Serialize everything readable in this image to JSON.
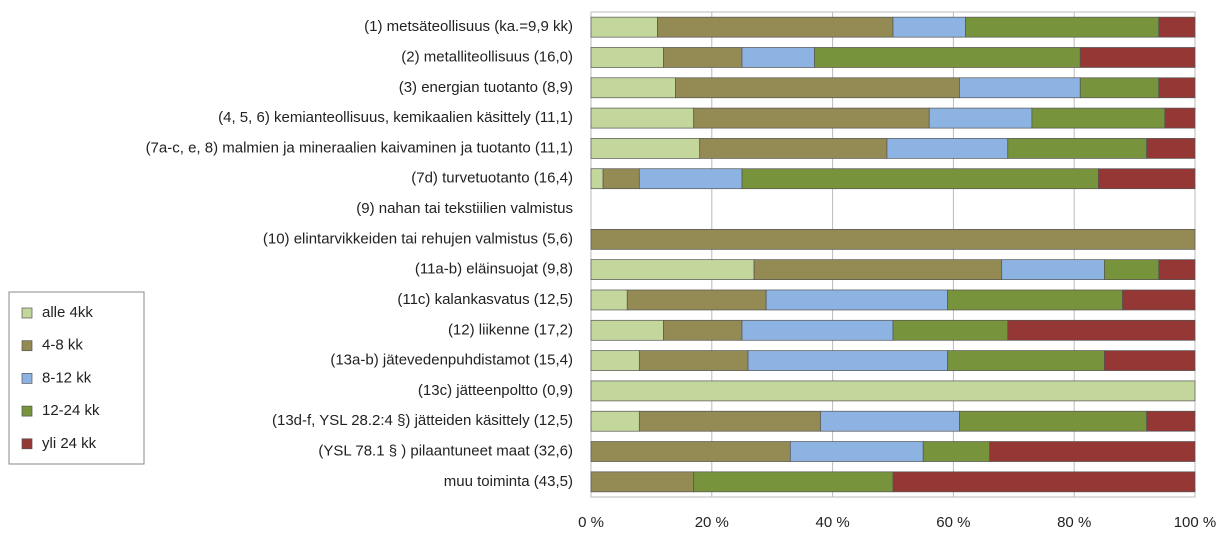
{
  "chart_data": {
    "type": "stacked_bar_horizontal",
    "categories": [
      "(1) metsäteollisuus (ka.=9,9 kk)",
      "(2) metalliteollisuus (16,0)",
      "(3) energian tuotanto (8,9)",
      "(4, 5, 6) kemianteollisuus, kemikaalien käsittely (11,1)",
      "(7a-c, e, 8) malmien ja mineraalien kaivaminen ja tuotanto (11,1)",
      "(7d) turvetuotanto (16,4)",
      "(9) nahan tai tekstiilien valmistus",
      "(10) elintarvikkeiden tai rehujen valmistus (5,6)",
      "(11a-b) eläinsuojat (9,8)",
      "(11c) kalankasvatus (12,5)",
      "(12) liikenne (17,2)",
      "(13a-b) jätevedenpuhdistamot (15,4)",
      "(13c) jätteenpoltto (0,9)",
      "(13d-f, YSL 28.2:4 §) jätteiden käsittely (12,5)",
      "(YSL 78.1 § ) pilaantuneet maat (32,6)",
      "muu toiminta (43,5)"
    ],
    "series": [
      {
        "name": "alle 4kk",
        "color": "#c3d69b",
        "values": [
          11,
          12,
          14,
          17,
          18,
          2,
          0,
          0,
          27,
          6,
          12,
          8,
          100,
          8,
          0,
          0
        ]
      },
      {
        "name": "4-8 kk",
        "color": "#948a54",
        "values": [
          39,
          13,
          47,
          39,
          31,
          6,
          0,
          100,
          41,
          23,
          13,
          18,
          0,
          30,
          33,
          17
        ]
      },
      {
        "name": "8-12 kk",
        "color": "#8db3e2",
        "values": [
          12,
          12,
          20,
          17,
          20,
          17,
          0,
          0,
          17,
          30,
          25,
          33,
          0,
          23,
          22,
          0
        ]
      },
      {
        "name": "12-24 kk",
        "color": "#77933c",
        "values": [
          32,
          44,
          13,
          22,
          23,
          59,
          0,
          0,
          9,
          29,
          19,
          26,
          0,
          31,
          11,
          33
        ]
      },
      {
        "name": "yli 24 kk",
        "color": "#953735",
        "values": [
          6,
          19,
          6,
          5,
          8,
          16,
          0,
          0,
          6,
          12,
          31,
          15,
          0,
          8,
          34,
          50
        ]
      }
    ],
    "xlim": [
      0,
      100
    ],
    "xticks": [
      {
        "value": 0,
        "label": "0 %"
      },
      {
        "value": 20,
        "label": "20 %"
      },
      {
        "value": 40,
        "label": "40 %"
      },
      {
        "value": 60,
        "label": "60 %"
      },
      {
        "value": 80,
        "label": "80 %"
      },
      {
        "value": 100,
        "label": "100 %"
      }
    ],
    "grid": true,
    "legend": "left"
  }
}
